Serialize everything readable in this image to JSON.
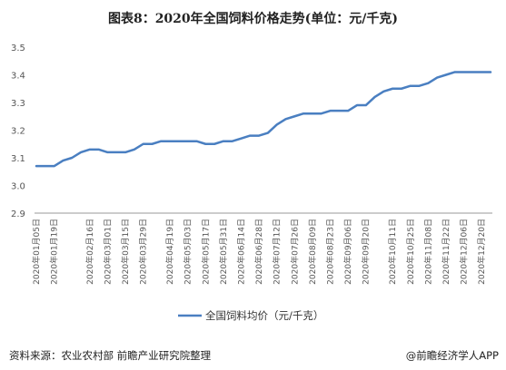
{
  "title": "图表8：2020年全国饲料价格走势(单位：元/千克)",
  "source": "资料来源：农业农村部 前瞻产业研究院整理",
  "credit": "@前瞻经济学人APP",
  "colors": {
    "line": "#4a7fc1",
    "axis": "#999999",
    "grid": "#e6e6e6"
  },
  "chart_data": {
    "type": "line",
    "title": "图表8：2020年全国饲料价格走势(单位：元/千克)",
    "xlabel": "",
    "ylabel": "",
    "ylim": [
      2.9,
      3.5
    ],
    "yticks": [
      2.9,
      3.0,
      3.1,
      3.2,
      3.3,
      3.4,
      3.5
    ],
    "ytick_labels": [
      "2.9",
      "3.0",
      "3.1",
      "3.2",
      "3.3",
      "3.4",
      "3.5"
    ],
    "grid": false,
    "legend": "bottom",
    "x": [
      "2020年01月05日",
      "2020年01月12日",
      "2020年01月19日",
      "2020年01月26日",
      "2020年02月02日",
      "2020年02月09日",
      "2020年02月16日",
      "2020年02月23日",
      "2020年03月01日",
      "2020年03月08日",
      "2020年03月15日",
      "2020年03月22日",
      "2020年03月29日",
      "2020年04月05日",
      "2020年04月12日",
      "2020年04月19日",
      "2020年04月26日",
      "2020年05月03日",
      "2020年05月10日",
      "2020年05月17日",
      "2020年05月24日",
      "2020年05月31日",
      "2020年06月07日",
      "2020年06月14日",
      "2020年06月21日",
      "2020年06月28日",
      "2020年07月05日",
      "2020年07月12日",
      "2020年07月19日",
      "2020年07月26日",
      "2020年08月02日",
      "2020年08月09日",
      "2020年08月16日",
      "2020年08月23日",
      "2020年08月30日",
      "2020年09月06日",
      "2020年09月13日",
      "2020年09月20日",
      "2020年09月27日",
      "2020年10月04日",
      "2020年10月11日",
      "2020年10月18日",
      "2020年10月25日",
      "2020年11月01日",
      "2020年11月08日",
      "2020年11月15日",
      "2020年11月22日",
      "2020年11月29日",
      "2020年12月06日",
      "2020年12月13日",
      "2020年12月20日",
      "2020年12月27日"
    ],
    "x_tick_labels": [
      "2020年01月05日",
      "2020年01月19日",
      "2020年02月16日",
      "2020年03月01日",
      "2020年03月15日",
      "2020年03月29日",
      "2020年04月19日",
      "2020年05月03日",
      "2020年05月17日",
      "2020年05月31日",
      "2020年06月14日",
      "2020年06月28日",
      "2020年07月12日",
      "2020年07月26日",
      "2020年08月09日",
      "2020年08月23日",
      "2020年09月06日",
      "2020年09月20日",
      "2020年10月11日",
      "2020年10月25日",
      "2020年11月08日",
      "2020年11月22日",
      "2020年12月06日",
      "2020年12月20日"
    ],
    "series": [
      {
        "name": "全国饲料均价（元/千克）",
        "values": [
          3.07,
          3.07,
          3.07,
          3.09,
          3.1,
          3.12,
          3.13,
          3.13,
          3.12,
          3.12,
          3.12,
          3.13,
          3.15,
          3.15,
          3.16,
          3.16,
          3.16,
          3.16,
          3.16,
          3.15,
          3.15,
          3.16,
          3.16,
          3.17,
          3.18,
          3.18,
          3.19,
          3.22,
          3.24,
          3.25,
          3.26,
          3.26,
          3.26,
          3.27,
          3.27,
          3.27,
          3.29,
          3.29,
          3.32,
          3.34,
          3.35,
          3.35,
          3.36,
          3.36,
          3.37,
          3.39,
          3.4,
          3.41,
          3.41,
          3.41,
          3.41,
          3.41
        ]
      }
    ]
  }
}
